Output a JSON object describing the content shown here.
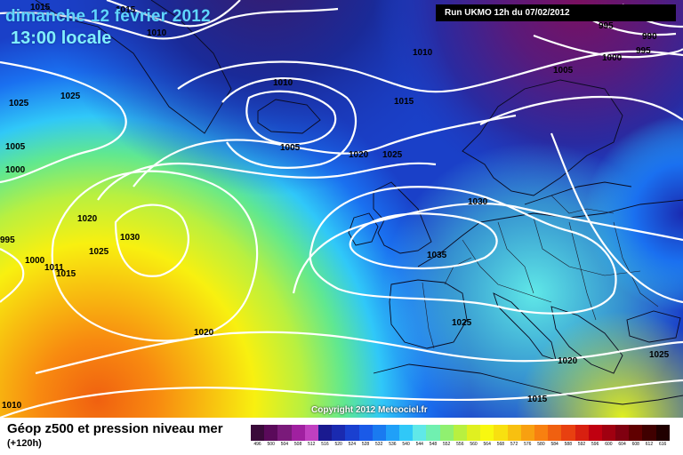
{
  "header": {
    "date_line": "dimanche 12 fevrier 2012",
    "time_line": "13:00 locale",
    "run_info": "Run UKMO 12h du 07/02/2012"
  },
  "copyright": "Copyright 2012 Meteociel.fr",
  "footer": {
    "title": "Géop z500 et pression niveau mer",
    "subtitle": "(+120h)"
  },
  "legend": {
    "values": [
      "496",
      "500",
      "504",
      "508",
      "512",
      "516",
      "520",
      "524",
      "528",
      "532",
      "536",
      "540",
      "544",
      "548",
      "552",
      "556",
      "560",
      "564",
      "568",
      "572",
      "576",
      "580",
      "584",
      "588",
      "592",
      "596",
      "600",
      "604",
      "608",
      "612",
      "616"
    ],
    "colors": [
      "#3a0a3a",
      "#5a0a5a",
      "#7a1a7a",
      "#a020a0",
      "#c040c0",
      "#1a1a90",
      "#1a2ab0",
      "#1a40d0",
      "#1a5ae8",
      "#1a7af0",
      "#20a0f8",
      "#30c8f8",
      "#60e8e8",
      "#70f0b0",
      "#90f070",
      "#b8f040",
      "#e0f020",
      "#f8f810",
      "#f8e010",
      "#f8c010",
      "#f8a010",
      "#f88010",
      "#f06010",
      "#e84010",
      "#d82010",
      "#c00010",
      "#a00010",
      "#800010",
      "#600000",
      "#400000",
      "#200000"
    ]
  },
  "isobars": [
    {
      "value": "1015",
      "label": "1015"
    },
    {
      "value": "1010",
      "label": "1010"
    },
    {
      "value": "1025",
      "label": "1025"
    },
    {
      "value": "1005",
      "label": "1005"
    },
    {
      "value": "1000",
      "label": "1000"
    },
    {
      "value": "995",
      "label": "995"
    },
    {
      "value": "990",
      "label": "990"
    },
    {
      "value": "1020",
      "label": "1020"
    },
    {
      "value": "1030",
      "label": "1030"
    },
    {
      "value": "1035",
      "label": "1035"
    },
    {
      "value": "1011",
      "label": "1011"
    }
  ],
  "map_labels": [
    "1015",
    "1015",
    "1010",
    "1025",
    "1025",
    "1005",
    "1000",
    "995",
    "990",
    "995",
    "1010",
    "1010",
    "1015",
    "1005",
    "1020",
    "1025",
    "1005",
    "1000",
    "995",
    "1020",
    "1030",
    "1025",
    "1000",
    "1011",
    "1015",
    "1030",
    "1035",
    "1020",
    "1025",
    "1020",
    "1025",
    "1010",
    "1015"
  ]
}
